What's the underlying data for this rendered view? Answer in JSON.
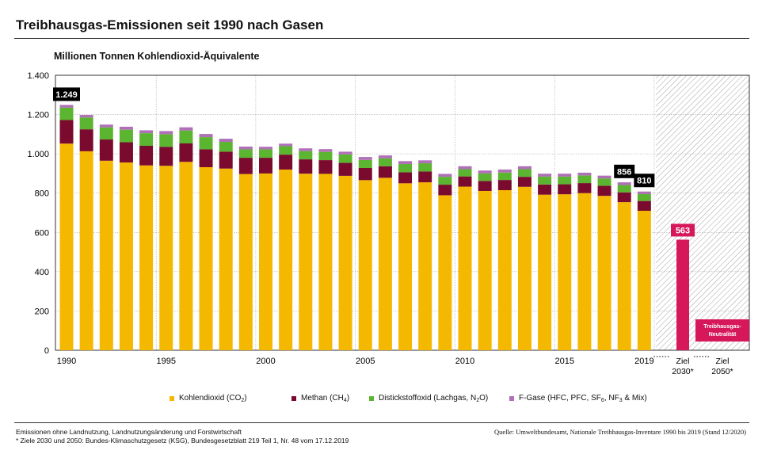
{
  "title": "Treibhausgas-Emissionen seit 1990 nach Gasen",
  "ylabel": "Millionen Tonnen Kohlendioxid-Äquivalente",
  "footnote_1": "Emissionen ohne Landnutzung, Landnutzungsänderung und Forstwirtschaft",
  "footnote_2": "* Ziele 2030 und 2050: Bundes-Klimaschutzgesetz (KSG), Bundesgesetzblatt 219 Teil 1, Nr. 48 vom 17.12.2019",
  "source": "Quelle: Umweltbundesamt, Nationale Treibhausgas-Inventare 1990 bis 2019 (Stand 12/2020)",
  "colors": {
    "co2": "#f5b800",
    "ch4": "#7a0b2e",
    "n2o": "#5cb531",
    "fgas": "#b070b8",
    "target": "#d6185a",
    "callout": "#000000"
  },
  "legend": {
    "co2": {
      "text": "Kohlendioxid (CO",
      "sub": "2",
      "end": ")"
    },
    "ch4": {
      "text": "Methan (CH",
      "sub": "4",
      "end": ")"
    },
    "n2o": {
      "text": "Distickstoffoxid (Lachgas, N",
      "sub": "2",
      "end": "O)"
    },
    "fgas": {
      "text": "F-Gase (HFC, PFC, SF",
      "sub1": "6",
      "mid": ", NF",
      "sub2": "3",
      "end": " & Mix)"
    }
  },
  "chart_data": {
    "type": "bar",
    "stacked": true,
    "title": "Treibhausgas-Emissionen seit 1990 nach Gasen",
    "ylabel": "Millionen Tonnen Kohlendioxid-Äquivalente",
    "ylim": [
      0,
      1400
    ],
    "yticks": [
      0,
      200,
      400,
      600,
      800,
      1000,
      1200,
      1400
    ],
    "ytick_labels": [
      "0",
      "200",
      "400",
      "600",
      "800",
      "1.000",
      "1.200",
      "1.400"
    ],
    "categories": [
      1990,
      1991,
      1992,
      1993,
      1994,
      1995,
      1996,
      1997,
      1998,
      1999,
      2000,
      2001,
      2002,
      2003,
      2004,
      2005,
      2006,
      2007,
      2008,
      2009,
      2010,
      2011,
      2012,
      2013,
      2014,
      2015,
      2016,
      2017,
      2018,
      2019
    ],
    "xtick_labels": [
      "1990",
      "1995",
      "2000",
      "2005",
      "2010",
      "2015",
      "2019"
    ],
    "series": [
      {
        "name": "Kohlendioxid (CO2)",
        "key": "co2",
        "values": [
          1052,
          1013,
          965,
          956,
          941,
          939,
          959,
          932,
          925,
          897,
          900,
          920,
          899,
          898,
          888,
          866,
          878,
          850,
          855,
          789,
          833,
          811,
          815,
          832,
          792,
          794,
          800,
          786,
          754,
          710
        ]
      },
      {
        "name": "Methan (CH4)",
        "key": "ch4",
        "values": [
          120,
          112,
          108,
          103,
          100,
          97,
          94,
          91,
          86,
          83,
          80,
          76,
          73,
          70,
          66,
          62,
          59,
          56,
          55,
          54,
          52,
          51,
          52,
          51,
          52,
          51,
          51,
          51,
          50,
          50
        ]
      },
      {
        "name": "Distickstoffoxid (Lachgas, N2O)",
        "key": "n2o",
        "values": [
          63,
          60,
          62,
          64,
          64,
          64,
          66,
          62,
          50,
          43,
          43,
          43,
          42,
          42,
          43,
          41,
          40,
          42,
          42,
          40,
          37,
          38,
          38,
          39,
          40,
          39,
          39,
          38,
          37,
          35
        ]
      },
      {
        "name": "F-Gase (HFC, PFC, SF6, NF3 & Mix)",
        "key": "fgas",
        "values": [
          14,
          13,
          14,
          15,
          15,
          16,
          16,
          16,
          16,
          14,
          13,
          13,
          14,
          14,
          14,
          15,
          15,
          15,
          15,
          15,
          15,
          15,
          15,
          15,
          15,
          15,
          14,
          14,
          14,
          13
        ]
      }
    ],
    "callouts": [
      {
        "category": 1990,
        "value": 1249,
        "label": "1.249"
      },
      {
        "category": 2018,
        "value": 856,
        "label": "856"
      },
      {
        "category": 2019,
        "value": 810,
        "label": "810"
      }
    ],
    "targets": [
      {
        "label_line1": "Ziel",
        "label_line2": "2030*",
        "value": 563,
        "value_label": "563"
      },
      {
        "label_line1": "Ziel",
        "label_line2": "2050*",
        "value": 0,
        "value_label": "",
        "box_line1": "Treibhausgas-",
        "box_line2": "Neutralität"
      }
    ]
  }
}
